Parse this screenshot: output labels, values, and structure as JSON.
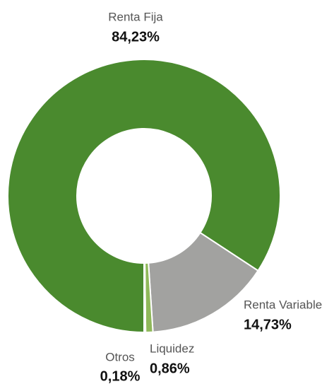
{
  "chart_data": {
    "type": "donut",
    "categories": [
      "Renta Fija",
      "Renta Variable",
      "Liquidez",
      "Otros"
    ],
    "values": [
      84.23,
      14.73,
      0.86,
      0.18
    ],
    "value_labels": [
      "84,23%",
      "14,73%",
      "0,86%",
      "0,18%"
    ],
    "colors": [
      "#4a8a2e",
      "#a2a2a0",
      "#8fb85a",
      "#a2a2a0"
    ]
  }
}
